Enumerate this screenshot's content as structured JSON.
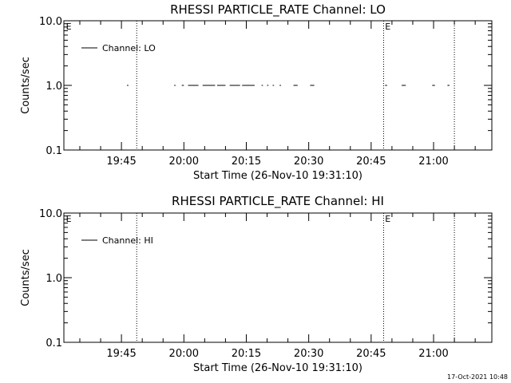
{
  "footer": {
    "timestamp": "17-Oct-2021 10:48"
  },
  "chart_data": [
    {
      "type": "line",
      "title": "RHESSI PARTICLE_RATE Channel: LO",
      "xlabel": "Start Time (26-Nov-10 19:31:10)",
      "ylabel": "Counts/sec",
      "yscale": "log",
      "ylim": [
        0.1,
        10.0
      ],
      "yticks": [
        {
          "value": 0.1,
          "label": "0.1"
        },
        {
          "value": 1.0,
          "label": "1.0"
        },
        {
          "value": 10.0,
          "label": "10.0"
        }
      ],
      "xlim": [
        "19:31:10",
        "21:14:00"
      ],
      "xticks": [
        {
          "time": "19:45",
          "label": "19:45"
        },
        {
          "time": "20:00",
          "label": "20:00"
        },
        {
          "time": "20:15",
          "label": "20:15"
        },
        {
          "time": "20:30",
          "label": "20:30"
        },
        {
          "time": "20:45",
          "label": "20:45"
        },
        {
          "time": "21:00",
          "label": "21:00"
        }
      ],
      "legend": {
        "position": "top-left",
        "entries": [
          "Channel: LO"
        ]
      },
      "vlines": [
        "19:48:40",
        "20:48:00",
        "21:05:00"
      ],
      "markers": [
        {
          "time": "19:31:40",
          "label": "E"
        },
        {
          "time": "20:48:20",
          "label": "E"
        }
      ],
      "series": [
        {
          "name": "Channel: LO",
          "segments": [
            [
              [
                "19:46:20",
                1.0
              ],
              [
                "19:46:40",
                1.0
              ]
            ],
            [
              [
                "19:57:40",
                1.0
              ],
              [
                "19:58:00",
                1.0
              ]
            ],
            [
              [
                "19:59:30",
                1.0
              ],
              [
                "20:00:00",
                1.0
              ]
            ],
            [
              [
                "20:01:00",
                1.0
              ],
              [
                "20:03:30",
                1.0
              ]
            ],
            [
              [
                "20:04:30",
                1.0
              ],
              [
                "20:07:30",
                1.0
              ]
            ],
            [
              [
                "20:08:00",
                1.0
              ],
              [
                "20:10:00",
                1.0
              ]
            ],
            [
              [
                "20:11:00",
                1.0
              ],
              [
                "20:13:30",
                1.0
              ]
            ],
            [
              [
                "20:14:00",
                1.0
              ],
              [
                "20:17:00",
                1.0
              ]
            ],
            [
              [
                "20:18:40",
                1.0
              ],
              [
                "20:19:00",
                1.0
              ]
            ],
            [
              [
                "20:20:00",
                1.0
              ],
              [
                "20:20:20",
                1.0
              ]
            ],
            [
              [
                "20:21:20",
                1.0
              ],
              [
                "20:21:40",
                1.0
              ]
            ],
            [
              [
                "20:23:00",
                1.0
              ],
              [
                "20:23:20",
                1.0
              ]
            ],
            [
              [
                "20:26:20",
                1.0
              ],
              [
                "20:27:20",
                1.0
              ]
            ],
            [
              [
                "20:30:20",
                1.0
              ],
              [
                "20:31:20",
                1.0
              ]
            ],
            [
              [
                "20:48:20",
                1.0
              ],
              [
                "20:48:50",
                1.0
              ]
            ],
            [
              [
                "20:52:20",
                1.0
              ],
              [
                "20:53:20",
                1.0
              ]
            ],
            [
              [
                "20:59:40",
                1.0
              ],
              [
                "21:00:20",
                1.0
              ]
            ],
            [
              [
                "21:03:20",
                1.0
              ],
              [
                "21:03:50",
                1.0
              ]
            ]
          ]
        }
      ]
    },
    {
      "type": "line",
      "title": "RHESSI PARTICLE_RATE Channel: HI",
      "xlabel": "Start Time (26-Nov-10 19:31:10)",
      "ylabel": "Counts/sec",
      "yscale": "log",
      "ylim": [
        0.1,
        10.0
      ],
      "yticks": [
        {
          "value": 0.1,
          "label": "0.1"
        },
        {
          "value": 1.0,
          "label": "1.0"
        },
        {
          "value": 10.0,
          "label": "10.0"
        }
      ],
      "xlim": [
        "19:31:10",
        "21:14:00"
      ],
      "xticks": [
        {
          "time": "19:45",
          "label": "19:45"
        },
        {
          "time": "20:00",
          "label": "20:00"
        },
        {
          "time": "20:15",
          "label": "20:15"
        },
        {
          "time": "20:30",
          "label": "20:30"
        },
        {
          "time": "20:45",
          "label": "20:45"
        },
        {
          "time": "21:00",
          "label": "21:00"
        }
      ],
      "legend": {
        "position": "top-left",
        "entries": [
          "Channel: HI"
        ]
      },
      "vlines": [
        "19:48:40",
        "20:48:00",
        "21:05:00"
      ],
      "markers": [
        {
          "time": "19:31:40",
          "label": "E"
        },
        {
          "time": "20:48:20",
          "label": "E"
        }
      ],
      "series": [
        {
          "name": "Channel: HI",
          "segments": []
        }
      ]
    }
  ]
}
